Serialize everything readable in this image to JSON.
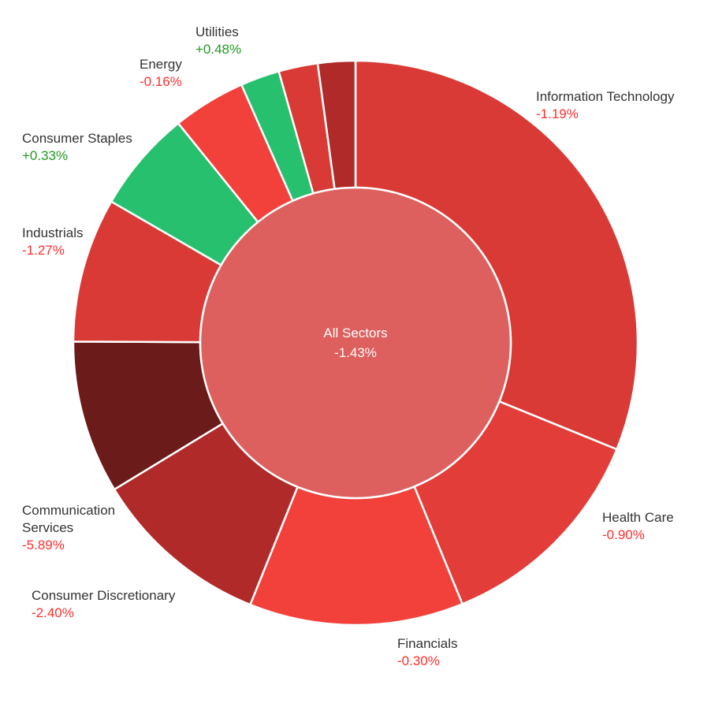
{
  "chart_data": {
    "type": "pie",
    "center": {
      "label": "All Sectors",
      "change": "-1.43%",
      "color": "#dd605e"
    },
    "series": [
      {
        "name": "Information Technology",
        "weight": 32.0,
        "change": "-1.19%",
        "color": "#d93a35"
      },
      {
        "name": "Health Care",
        "weight": 13.0,
        "change": "-0.90%",
        "color": "#e23d38"
      },
      {
        "name": "Financials",
        "weight": 12.6,
        "change": "-0.30%",
        "color": "#f2403b"
      },
      {
        "name": "Consumer Discretionary",
        "weight": 10.5,
        "change": "-2.40%",
        "color": "#b02a29"
      },
      {
        "name": "Communication Services",
        "weight": 9.0,
        "change": "-5.89%",
        "color": "#6b1b1a"
      },
      {
        "name": "Industrials",
        "weight": 8.5,
        "change": "-1.27%",
        "color": "#d93a35"
      },
      {
        "name": "Consumer Staples",
        "weight": 6.0,
        "change": "+0.33%",
        "color": "#27c06e"
      },
      {
        "name": "Energy",
        "weight": 4.3,
        "change": "-0.16%",
        "color": "#f2403b"
      },
      {
        "name": "Utilities",
        "weight": 2.3,
        "change": "+0.48%",
        "color": "#27c06e"
      },
      {
        "name": "",
        "weight": 2.3,
        "change": "",
        "color": "#d93a35"
      },
      {
        "name": "",
        "weight": 2.2,
        "change": "",
        "color": "#b02a29"
      }
    ],
    "colors": {
      "negative_text": "#ff2e2e",
      "positive_text": "#1f9a1f",
      "label_text": "#333333",
      "separator": "#ffffff"
    }
  }
}
